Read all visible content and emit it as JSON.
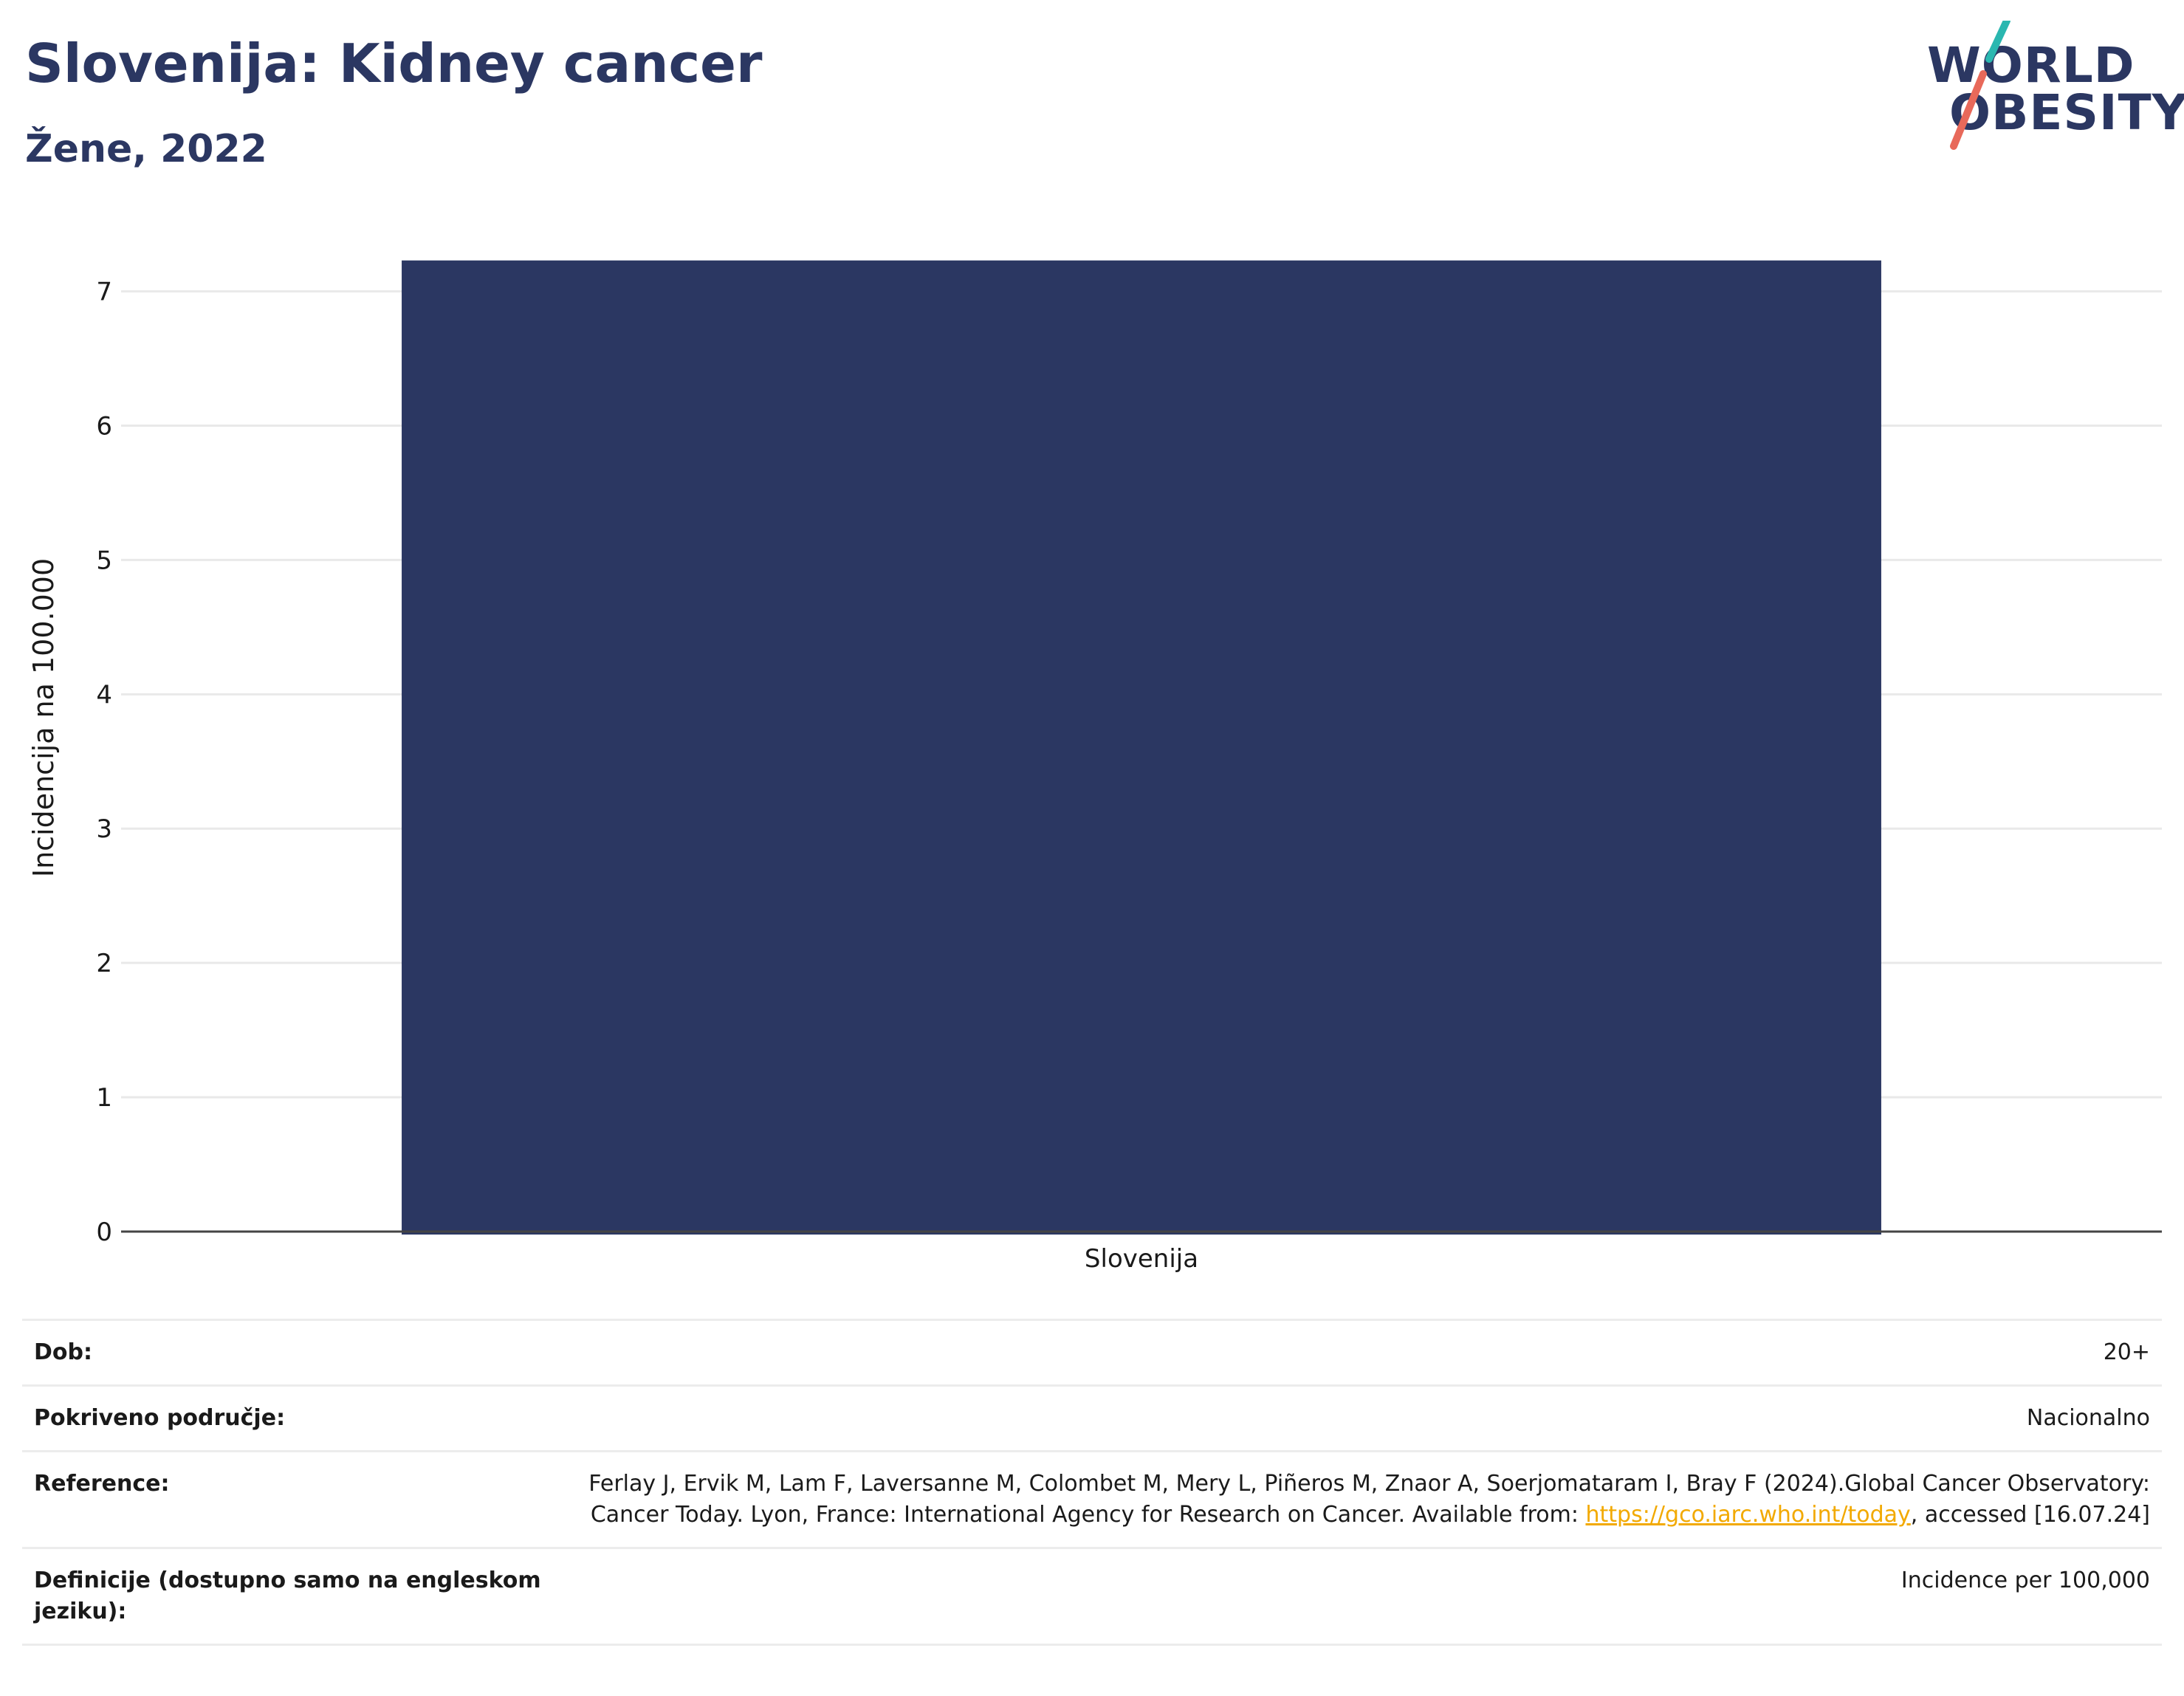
{
  "header": {
    "title": "Slovenija: Kidney cancer",
    "subtitle": "Žene, 2022"
  },
  "logo": {
    "line1": "WORLD",
    "line2": "OBESITY",
    "colors": {
      "text": "#2b3762",
      "slash_top": "#2ab7b0",
      "slash_bottom": "#e8695a"
    }
  },
  "chart_data": {
    "type": "bar",
    "categories": [
      "Slovenija"
    ],
    "values": [
      7.23
    ],
    "title": "Slovenija: Kidney cancer",
    "subtitle": "Žene, 2022",
    "xlabel": "",
    "ylabel": "Incidencija na 100.000",
    "ylim": [
      0,
      7.3
    ],
    "yticks": [
      0,
      1,
      2,
      3,
      4,
      5,
      6,
      7
    ],
    "grid": true,
    "bar_color": "#2b3762"
  },
  "info": {
    "rows": [
      {
        "label": "Dob:",
        "value": "20+"
      },
      {
        "label": "Pokriveno područje:",
        "value": "Nacionalno"
      },
      {
        "label": "Reference:",
        "value_part1": "Ferlay J, Ervik M, Lam F, Laversanne M, Colombet M, Mery L, Piñeros M, Znaor A, Soerjomataram I, Bray F (2024).Global Cancer Observatory: Cancer Today. Lyon, France: International Agency for Research on Cancer. Available from: ",
        "link": "https://gco.iarc.who.int/today",
        "value_part2": ", accessed [16.07.24]"
      },
      {
        "label": "Definicije (dostupno samo na engleskom jeziku):",
        "value": "Incidence per 100,000"
      }
    ]
  }
}
